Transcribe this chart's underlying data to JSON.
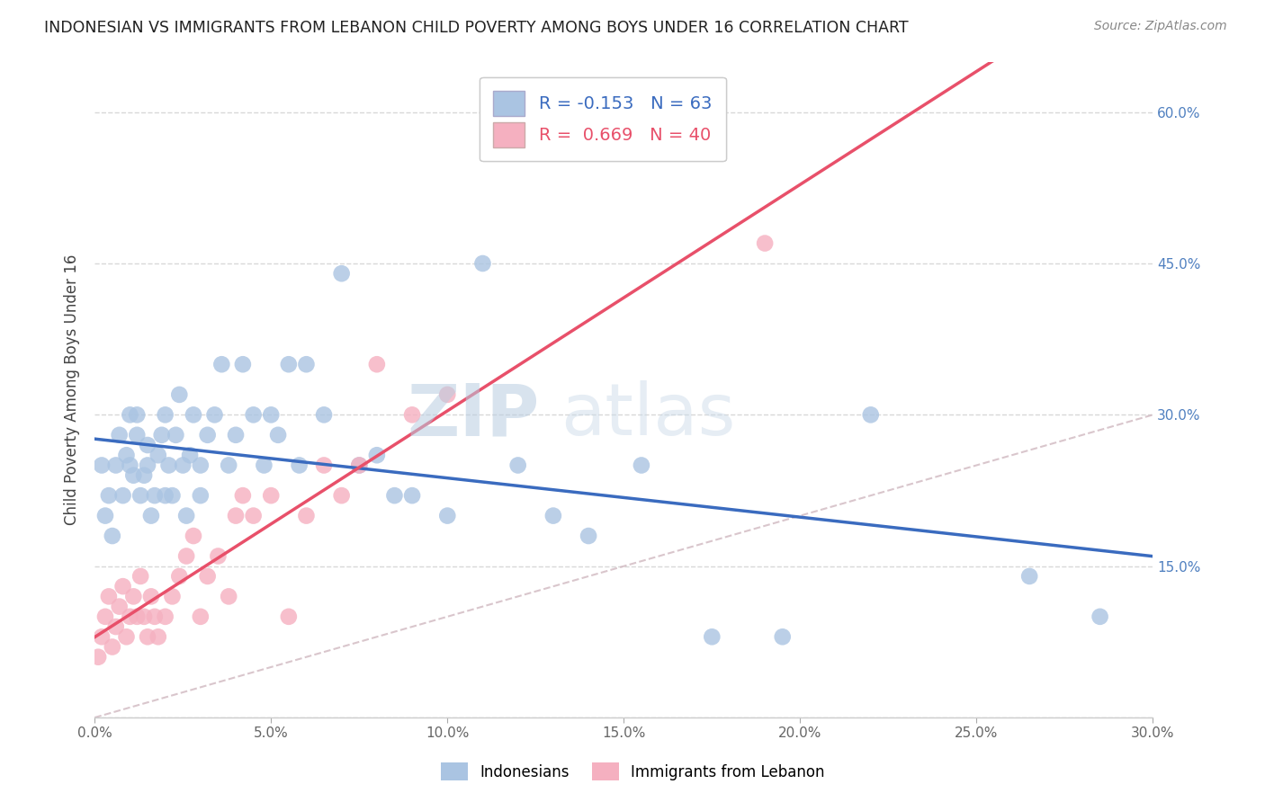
{
  "title": "INDONESIAN VS IMMIGRANTS FROM LEBANON CHILD POVERTY AMONG BOYS UNDER 16 CORRELATION CHART",
  "source": "Source: ZipAtlas.com",
  "ylabel": "Child Poverty Among Boys Under 16",
  "xlim": [
    0.0,
    0.3
  ],
  "ylim": [
    0.0,
    0.65
  ],
  "legend_indonesians": "Indonesians",
  "legend_lebanon": "Immigrants from Lebanon",
  "blue_color": "#aac4e2",
  "pink_color": "#f5b0c0",
  "blue_line_color": "#3a6bbf",
  "pink_line_color": "#e8506a",
  "diagonal_color": "#d0b8c0",
  "R_indonesians": -0.153,
  "N_indonesians": 63,
  "R_lebanon": 0.669,
  "N_lebanon": 40,
  "indonesians_x": [
    0.002,
    0.003,
    0.004,
    0.005,
    0.006,
    0.007,
    0.008,
    0.009,
    0.01,
    0.01,
    0.011,
    0.012,
    0.012,
    0.013,
    0.014,
    0.015,
    0.015,
    0.016,
    0.017,
    0.018,
    0.019,
    0.02,
    0.02,
    0.021,
    0.022,
    0.023,
    0.024,
    0.025,
    0.026,
    0.027,
    0.028,
    0.03,
    0.03,
    0.032,
    0.034,
    0.036,
    0.038,
    0.04,
    0.042,
    0.045,
    0.048,
    0.05,
    0.052,
    0.055,
    0.058,
    0.06,
    0.065,
    0.07,
    0.075,
    0.08,
    0.085,
    0.09,
    0.1,
    0.11,
    0.12,
    0.13,
    0.14,
    0.155,
    0.175,
    0.195,
    0.22,
    0.265,
    0.285
  ],
  "indonesians_y": [
    0.25,
    0.2,
    0.22,
    0.18,
    0.25,
    0.28,
    0.22,
    0.26,
    0.25,
    0.3,
    0.24,
    0.28,
    0.3,
    0.22,
    0.24,
    0.25,
    0.27,
    0.2,
    0.22,
    0.26,
    0.28,
    0.22,
    0.3,
    0.25,
    0.22,
    0.28,
    0.32,
    0.25,
    0.2,
    0.26,
    0.3,
    0.25,
    0.22,
    0.28,
    0.3,
    0.35,
    0.25,
    0.28,
    0.35,
    0.3,
    0.25,
    0.3,
    0.28,
    0.35,
    0.25,
    0.35,
    0.3,
    0.44,
    0.25,
    0.26,
    0.22,
    0.22,
    0.2,
    0.45,
    0.25,
    0.2,
    0.18,
    0.25,
    0.08,
    0.08,
    0.3,
    0.14,
    0.1
  ],
  "lebanon_x": [
    0.001,
    0.002,
    0.003,
    0.004,
    0.005,
    0.006,
    0.007,
    0.008,
    0.009,
    0.01,
    0.011,
    0.012,
    0.013,
    0.014,
    0.015,
    0.016,
    0.017,
    0.018,
    0.02,
    0.022,
    0.024,
    0.026,
    0.028,
    0.03,
    0.032,
    0.035,
    0.038,
    0.04,
    0.042,
    0.045,
    0.05,
    0.055,
    0.06,
    0.065,
    0.07,
    0.075,
    0.08,
    0.09,
    0.1,
    0.19
  ],
  "lebanon_y": [
    0.06,
    0.08,
    0.1,
    0.12,
    0.07,
    0.09,
    0.11,
    0.13,
    0.08,
    0.1,
    0.12,
    0.1,
    0.14,
    0.1,
    0.08,
    0.12,
    0.1,
    0.08,
    0.1,
    0.12,
    0.14,
    0.16,
    0.18,
    0.1,
    0.14,
    0.16,
    0.12,
    0.2,
    0.22,
    0.2,
    0.22,
    0.1,
    0.2,
    0.25,
    0.22,
    0.25,
    0.35,
    0.3,
    0.32,
    0.47
  ],
  "watermark_zip": "ZIP",
  "watermark_atlas": "atlas",
  "background_color": "#ffffff",
  "grid_color": "#d8d8d8"
}
